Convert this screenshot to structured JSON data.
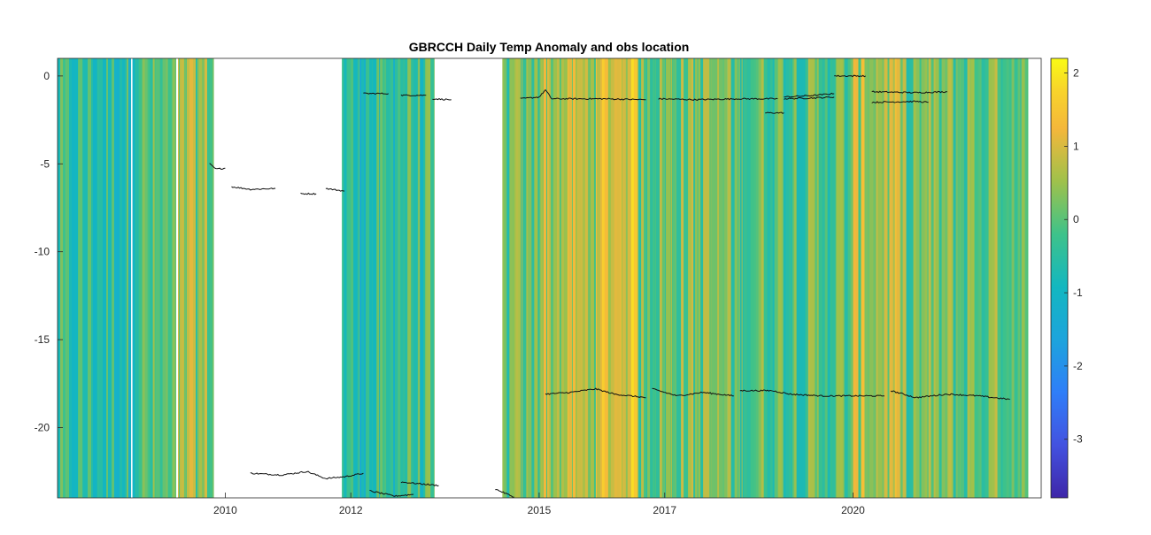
{
  "chart_data": {
    "type": "heatmap",
    "title": "GBRCCH Daily Temp Anomaly and obs location",
    "xlabel": "",
    "ylabel": "",
    "x_axis": {
      "type": "date",
      "range": [
        "2007-05-01",
        "2022-12-31"
      ],
      "ticks": [
        {
          "date": "2010-01-01",
          "label": "2010"
        },
        {
          "date": "2012-01-01",
          "label": "2012"
        },
        {
          "date": "2015-01-01",
          "label": "2015"
        },
        {
          "date": "2017-01-01",
          "label": "2017"
        },
        {
          "date": "2020-01-01",
          "label": "2020"
        }
      ]
    },
    "y_axis": {
      "range": [
        -24,
        1
      ],
      "ticks": [
        0,
        -5,
        -10,
        -15,
        -20
      ],
      "tick_labels": [
        "0",
        "-5",
        "-10",
        "-15",
        "-20"
      ]
    },
    "colorbar": {
      "colormap": "parula",
      "range": [
        -3.8,
        2.2
      ],
      "ticks": [
        2,
        1,
        0,
        -1,
        -2,
        -3
      ],
      "tick_labels": [
        "2",
        "1",
        "0",
        "-1",
        "-2",
        "-3"
      ]
    },
    "heatmap_anomaly_periods": [
      {
        "start": "2007-05-01",
        "end": "2008-06-30",
        "anomaly": -0.5
      },
      {
        "start": "2008-07-10",
        "end": "2009-03-20",
        "anomaly": -0.2
      },
      {
        "start": "2009-04-01",
        "end": "2009-10-25",
        "anomaly": 0.3
      },
      {
        "start": "2011-11-10",
        "end": "2012-09-15",
        "anomaly": -0.6
      },
      {
        "start": "2012-09-15",
        "end": "2013-05-01",
        "anomaly": -0.3
      },
      {
        "start": "2014-06-01",
        "end": "2015-01-01",
        "anomaly": 0.0
      },
      {
        "start": "2015-01-01",
        "end": "2015-12-31",
        "anomaly": 0.6
      },
      {
        "start": "2016-01-01",
        "end": "2016-07-31",
        "anomaly": 1.1
      },
      {
        "start": "2016-08-01",
        "end": "2017-12-31",
        "anomaly": 0.2
      },
      {
        "start": "2018-01-01",
        "end": "2019-12-31",
        "anomaly": 0.0
      },
      {
        "start": "2020-01-01",
        "end": "2020-09-30",
        "anomaly": 0.6
      },
      {
        "start": "2020-10-01",
        "end": "2022-10-15",
        "anomaly": 0.1
      }
    ],
    "obs_series": [
      {
        "depths": [
          [
            2009.75,
            -5.0
          ],
          [
            2009.85,
            -5.3
          ],
          [
            2010.0,
            -5.25
          ]
        ]
      },
      {
        "depths": [
          [
            2010.1,
            -6.3
          ],
          [
            2010.4,
            -6.45
          ],
          [
            2010.8,
            -6.4
          ]
        ]
      },
      {
        "depths": [
          [
            2011.2,
            -6.7
          ],
          [
            2011.45,
            -6.7
          ]
        ]
      },
      {
        "depths": [
          [
            2011.6,
            -6.4
          ],
          [
            2011.9,
            -6.55
          ]
        ]
      },
      {
        "depths": [
          [
            2010.4,
            -22.6
          ],
          [
            2010.9,
            -22.7
          ],
          [
            2011.3,
            -22.5
          ],
          [
            2011.6,
            -22.9
          ],
          [
            2011.9,
            -22.8
          ],
          [
            2012.2,
            -22.6
          ]
        ]
      },
      {
        "depths": [
          [
            2012.2,
            -1.0
          ],
          [
            2012.6,
            -1.0
          ]
        ]
      },
      {
        "depths": [
          [
            2012.8,
            -1.1
          ],
          [
            2013.2,
            -1.1
          ]
        ]
      },
      {
        "depths": [
          [
            2013.3,
            -1.3
          ],
          [
            2013.6,
            -1.35
          ]
        ]
      },
      {
        "depths": [
          [
            2014.7,
            -1.3
          ],
          [
            2015.0,
            -1.2
          ],
          [
            2015.1,
            -0.8
          ],
          [
            2015.2,
            -1.3
          ],
          [
            2016.0,
            -1.3
          ],
          [
            2016.7,
            -1.35
          ]
        ]
      },
      {
        "depths": [
          [
            2016.9,
            -1.3
          ],
          [
            2017.5,
            -1.35
          ],
          [
            2018.2,
            -1.3
          ],
          [
            2018.8,
            -1.3
          ]
        ]
      },
      {
        "depths": [
          [
            2018.6,
            -2.1
          ],
          [
            2018.9,
            -2.1
          ]
        ]
      },
      {
        "depths": [
          [
            2018.9,
            -1.2
          ],
          [
            2019.4,
            -1.1
          ],
          [
            2019.7,
            -1.0
          ]
        ]
      },
      {
        "depths": [
          [
            2018.9,
            -1.3
          ],
          [
            2019.4,
            -1.25
          ],
          [
            2019.7,
            -1.2
          ]
        ]
      },
      {
        "depths": [
          [
            2019.7,
            0.0
          ],
          [
            2020.2,
            0.0
          ]
        ]
      },
      {
        "depths": [
          [
            2020.3,
            -0.9
          ],
          [
            2021.0,
            -0.95
          ],
          [
            2021.5,
            -0.9
          ]
        ]
      },
      {
        "depths": [
          [
            2020.3,
            -1.5
          ],
          [
            2021.0,
            -1.45
          ],
          [
            2021.2,
            -1.5
          ]
        ]
      },
      {
        "depths": [
          [
            2012.3,
            -23.6
          ],
          [
            2012.7,
            -23.9
          ],
          [
            2013.0,
            -23.8
          ]
        ]
      },
      {
        "depths": [
          [
            2012.8,
            -23.1
          ],
          [
            2013.4,
            -23.3
          ]
        ]
      },
      {
        "depths": [
          [
            2014.3,
            -23.5
          ],
          [
            2014.6,
            -23.95
          ]
        ]
      },
      {
        "depths": [
          [
            2015.1,
            -18.1
          ],
          [
            2015.5,
            -18.0
          ],
          [
            2015.9,
            -17.8
          ],
          [
            2016.2,
            -18.1
          ],
          [
            2016.7,
            -18.3
          ]
        ]
      },
      {
        "depths": [
          [
            2016.8,
            -17.8
          ],
          [
            2017.2,
            -18.2
          ],
          [
            2017.6,
            -18.0
          ],
          [
            2018.1,
            -18.2
          ]
        ]
      },
      {
        "depths": [
          [
            2018.2,
            -17.9
          ],
          [
            2018.7,
            -17.9
          ],
          [
            2019.0,
            -18.1
          ],
          [
            2019.5,
            -18.2
          ],
          [
            2020.0,
            -18.2
          ]
        ]
      },
      {
        "depths": [
          [
            2020.0,
            -18.2
          ],
          [
            2020.5,
            -18.2
          ]
        ]
      },
      {
        "depths": [
          [
            2020.6,
            -17.9
          ],
          [
            2021.0,
            -18.3
          ],
          [
            2021.5,
            -18.1
          ],
          [
            2022.0,
            -18.2
          ],
          [
            2022.5,
            -18.4
          ]
        ]
      }
    ],
    "grid": false,
    "legend": "none"
  }
}
